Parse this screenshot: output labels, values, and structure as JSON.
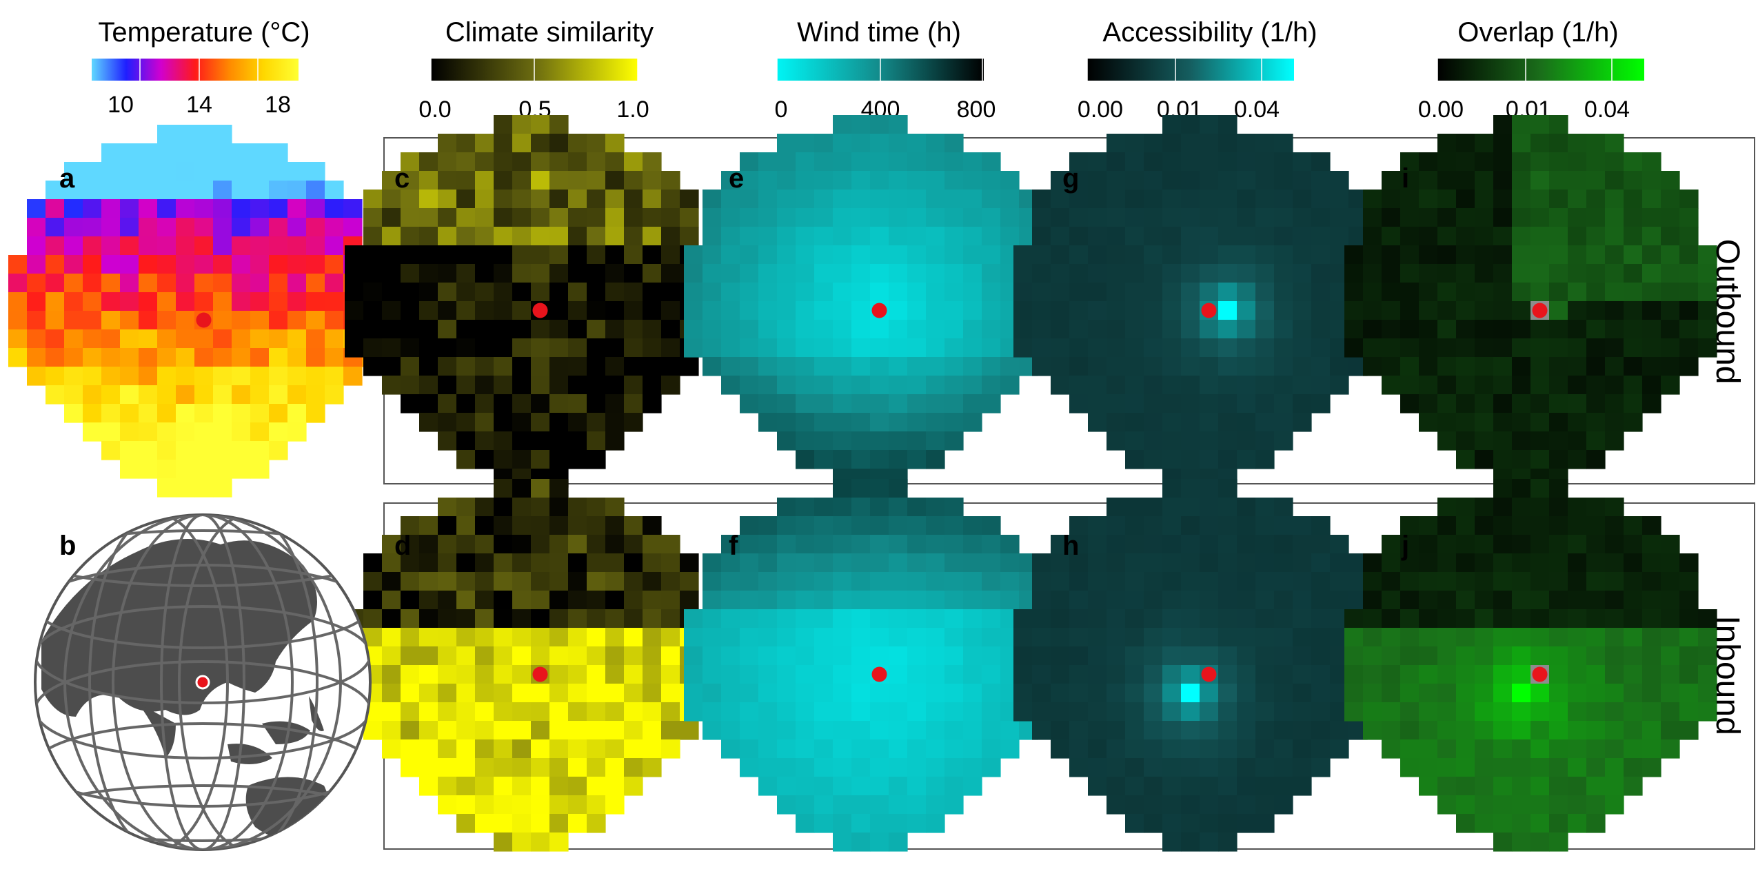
{
  "legends": [
    {
      "id": "temperature",
      "title": "Temperature (°C)",
      "ticks": [
        "10",
        "14",
        "18"
      ],
      "colors": [
        "#5fd8ff",
        "#1f1fff",
        "#d000d0",
        "#ff1a1a",
        "#ff8a00",
        "#ffd800",
        "#ffff33"
      ]
    },
    {
      "id": "climate",
      "title": "Climate similarity",
      "ticks": [
        "0.0",
        "0.5",
        "1.0"
      ],
      "colors": [
        "#000000",
        "#6b6b10",
        "#ffff00"
      ]
    },
    {
      "id": "wind",
      "title": "Wind time (h)",
      "ticks": [
        "0",
        "400",
        "800"
      ],
      "colors": [
        "#00f5f5",
        "#138a8a",
        "#000000"
      ]
    },
    {
      "id": "access",
      "title": "Accessibility (1/h)",
      "ticks": [
        "0.00",
        "0.01",
        "0.04"
      ],
      "colors": [
        "#000000",
        "#155e60",
        "#00ffff"
      ]
    },
    {
      "id": "overlap",
      "title": "Overlap (1/h)",
      "ticks": [
        "0.00",
        "0.01",
        "0.04"
      ],
      "colors": [
        "#000000",
        "#1a6e1a",
        "#00ff00"
      ]
    }
  ],
  "panels": [
    {
      "label": "a",
      "kind": "temperature"
    },
    {
      "label": "b",
      "kind": "globe"
    },
    {
      "label": "c",
      "kind": "climate",
      "row": "outbound"
    },
    {
      "label": "d",
      "kind": "climate",
      "row": "inbound"
    },
    {
      "label": "e",
      "kind": "wind",
      "row": "outbound"
    },
    {
      "label": "f",
      "kind": "wind",
      "row": "inbound"
    },
    {
      "label": "g",
      "kind": "access",
      "row": "outbound"
    },
    {
      "label": "h",
      "kind": "access",
      "row": "inbound"
    },
    {
      "label": "i",
      "kind": "overlap",
      "row": "outbound"
    },
    {
      "label": "j",
      "kind": "overlap",
      "row": "inbound"
    }
  ],
  "row_labels": {
    "outbound": "Outbound",
    "inbound": "Inbound"
  },
  "marker_color": "#e8141c",
  "chart_data": [
    {
      "type": "heatmap",
      "panel": "a",
      "title": "Temperature (°C)",
      "scale_ticks": [
        10,
        14,
        18
      ],
      "grid": "circular 16x18 raster of cells"
    },
    {
      "type": "heatmap",
      "panel": "c",
      "title": "Climate similarity",
      "row": "Outbound",
      "scale_ticks": [
        0.0,
        0.5,
        1.0
      ]
    },
    {
      "type": "heatmap",
      "panel": "d",
      "title": "Climate similarity",
      "row": "Inbound",
      "scale_ticks": [
        0.0,
        0.5,
        1.0
      ]
    },
    {
      "type": "heatmap",
      "panel": "e",
      "title": "Wind time (h)",
      "row": "Outbound",
      "scale_ticks": [
        0,
        400,
        800
      ]
    },
    {
      "type": "heatmap",
      "panel": "f",
      "title": "Wind time (h)",
      "row": "Inbound",
      "scale_ticks": [
        0,
        400,
        800
      ]
    },
    {
      "type": "heatmap",
      "panel": "g",
      "title": "Accessibility (1/h)",
      "row": "Outbound",
      "scale_ticks": [
        0.0,
        0.01,
        0.04
      ]
    },
    {
      "type": "heatmap",
      "panel": "h",
      "title": "Accessibility (1/h)",
      "row": "Inbound",
      "scale_ticks": [
        0.0,
        0.01,
        0.04
      ]
    },
    {
      "type": "heatmap",
      "panel": "i",
      "title": "Overlap (1/h)",
      "row": "Outbound",
      "scale_ticks": [
        0.0,
        0.01,
        0.04
      ]
    },
    {
      "type": "heatmap",
      "panel": "j",
      "title": "Overlap (1/h)",
      "row": "Inbound",
      "scale_ticks": [
        0.0,
        0.01,
        0.04
      ]
    }
  ]
}
